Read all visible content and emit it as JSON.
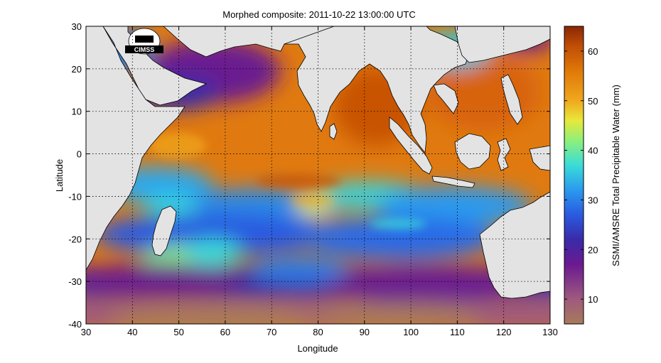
{
  "title": "Morphed composite: 2011-10-22 13:00:00 UTC",
  "logo_text": "CIMSS",
  "chart_data": {
    "type": "heatmap",
    "xlabel": "Longitude",
    "ylabel": "Latitude",
    "xlim": [
      30,
      130
    ],
    "ylim": [
      -40,
      30
    ],
    "xticks": [
      30,
      40,
      50,
      60,
      70,
      80,
      90,
      100,
      110,
      120,
      130
    ],
    "yticks": [
      30,
      20,
      10,
      0,
      -10,
      -20,
      -30,
      -40
    ],
    "grid": true,
    "colorbar": {
      "label": "SSMI/AMSRE Total Precipitable Water (mm)",
      "range": [
        5,
        65
      ],
      "ticks": [
        10,
        20,
        30,
        40,
        50,
        60
      ],
      "stops": [
        {
          "v": 5,
          "c": "#a87a5a"
        },
        {
          "v": 10,
          "c": "#9e5a7e"
        },
        {
          "v": 17,
          "c": "#6a1a90"
        },
        {
          "v": 22,
          "c": "#3a2aa8"
        },
        {
          "v": 27,
          "c": "#2a5ae0"
        },
        {
          "v": 32,
          "c": "#2a9aee"
        },
        {
          "v": 37,
          "c": "#3adcd8"
        },
        {
          "v": 42,
          "c": "#8ef07a"
        },
        {
          "v": 46,
          "c": "#e8e83a"
        },
        {
          "v": 50,
          "c": "#f0a81e"
        },
        {
          "v": 56,
          "c": "#e07808"
        },
        {
          "v": 61,
          "c": "#c04e06"
        },
        {
          "v": 65,
          "c": "#8a2606"
        }
      ]
    },
    "land_color": "#e3e3e3"
  }
}
